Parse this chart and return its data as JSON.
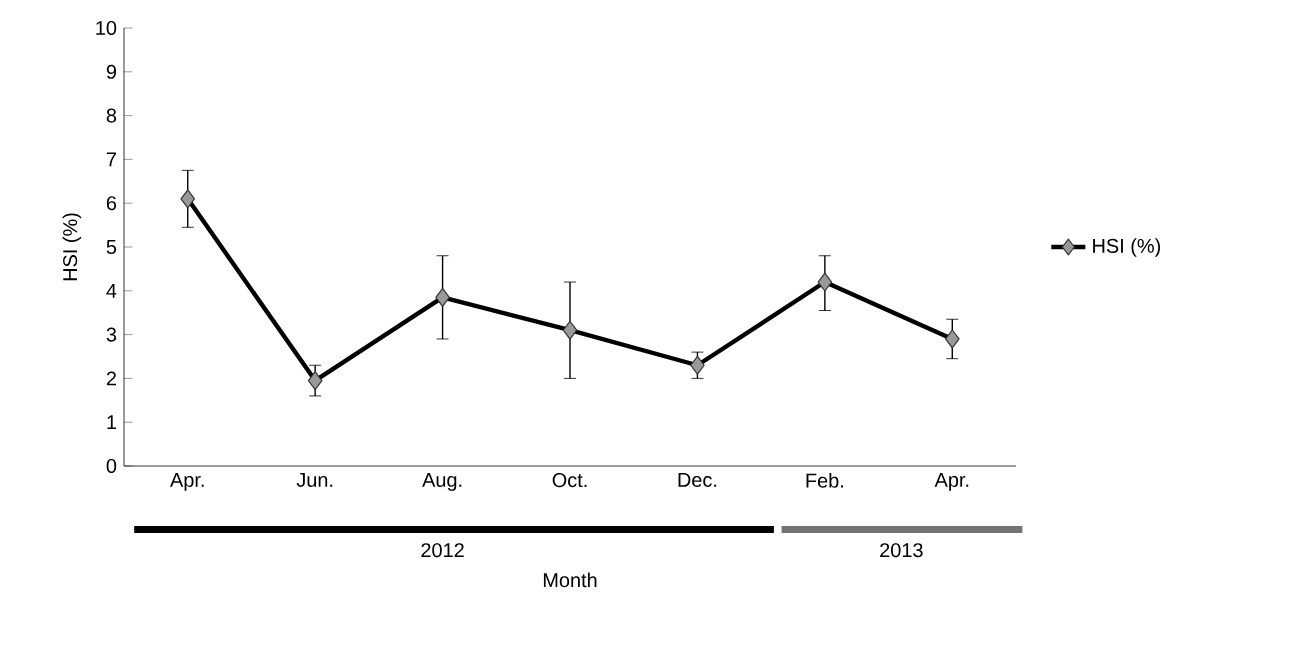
{
  "chart_data": {
    "type": "line",
    "xlabel": "Month",
    "ylabel": "HSI (%)",
    "categories": [
      "Apr.",
      "Jun.",
      "Aug.",
      "Oct.",
      "Dec.",
      "Feb.",
      "Apr."
    ],
    "series": [
      {
        "name": "HSI (%)",
        "color": "#000000",
        "values": [
          6.1,
          1.95,
          3.85,
          3.1,
          2.3,
          4.2,
          2.9
        ],
        "errors": [
          [
            5.45,
            6.75
          ],
          [
            1.6,
            2.3
          ],
          [
            2.9,
            4.8
          ],
          [
            2.0,
            4.2
          ],
          [
            2.0,
            2.6
          ],
          [
            3.55,
            4.8
          ],
          [
            2.45,
            3.35
          ]
        ]
      }
    ],
    "ylim": [
      0,
      10
    ],
    "yticks": [
      0,
      1,
      2,
      3,
      4,
      5,
      6,
      7,
      8,
      9,
      10
    ],
    "marker": "diamond",
    "line_style": "solid",
    "legend": "right",
    "grid": false,
    "annotations": [
      "2012",
      "2013"
    ]
  }
}
